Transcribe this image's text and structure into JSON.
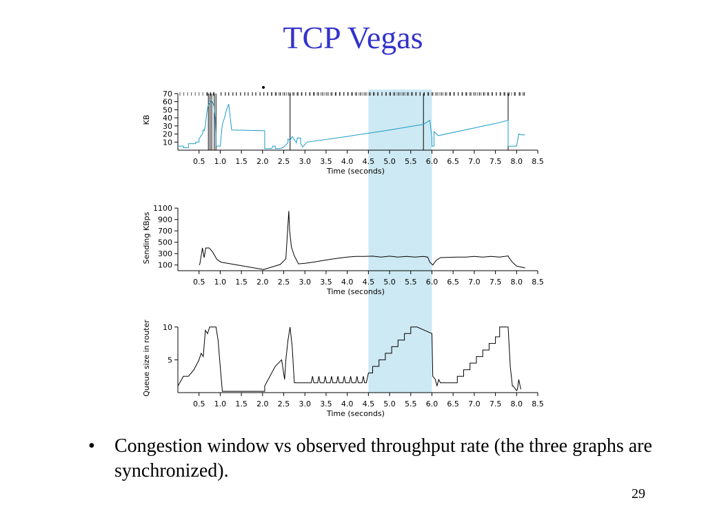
{
  "slide": {
    "title": "TCP Vegas",
    "bullet_symbol": "•",
    "bullet_text": "Congestion window vs observed throughput rate (the three graphs are synchronized).",
    "page_number": "29"
  },
  "colors": {
    "title": "#3333cc",
    "highlight": "#cde9f3",
    "cwnd_line": "#1a9bc8",
    "trace": "#000000"
  },
  "chart_data": [
    {
      "type": "line",
      "xlabel": "Time (seconds)",
      "ylabel": "KB",
      "xlim": [
        0.0,
        8.5
      ],
      "ylim": [
        0,
        75
      ],
      "x_ticks": [
        "0.5",
        "1.0",
        "1.5",
        "2.0",
        "2.5",
        "3.0",
        "3.5",
        "4.0",
        "4.5",
        "5.0",
        "5.5",
        "6.0",
        "6.5",
        "7.0",
        "7.5",
        "8.0",
        "8.5"
      ],
      "y_ticks": [
        10,
        20,
        30,
        40,
        50,
        60,
        70
      ],
      "highlight_x": [
        4.5,
        6.0
      ],
      "events_marker_y": 70,
      "events": [
        0.7,
        0.77,
        0.84,
        1.02,
        1.12,
        1.2,
        1.3,
        1.38,
        1.48,
        1.58,
        1.66,
        1.76,
        1.84,
        1.94,
        2.03,
        2.12,
        2.22,
        2.32,
        2.42,
        2.52,
        2.62,
        2.72,
        2.82,
        2.92,
        3.02,
        3.12,
        3.22,
        3.32,
        3.42,
        3.52,
        3.62,
        3.72,
        3.82,
        3.92,
        4.02,
        4.12,
        4.22,
        4.32,
        4.42,
        4.52,
        4.62,
        4.72,
        4.82,
        4.92,
        5.02,
        5.12,
        5.22,
        5.32,
        5.42,
        5.52,
        5.62,
        5.72,
        5.82,
        5.92,
        6.02,
        6.12,
        6.22,
        6.32,
        6.42,
        6.52,
        6.62,
        6.72,
        6.82,
        6.92,
        7.02,
        7.12,
        7.22,
        7.32,
        7.42,
        7.52,
        7.62,
        7.72,
        7.82,
        7.95,
        8.08,
        8.18
      ],
      "tick_gap": [
        0.9,
        2.05
      ],
      "dot_x": 2.02,
      "vlines": [
        0.72,
        0.76,
        0.8,
        0.86,
        0.9,
        2.65,
        5.8,
        7.8
      ],
      "series": [
        {
          "color": "#1a9bc8",
          "x": [
            0.0,
            0.13,
            0.13,
            0.25,
            0.25,
            0.42,
            0.42,
            0.5,
            0.5,
            0.55,
            0.58,
            0.6,
            0.62,
            0.65,
            0.67,
            0.7,
            0.72,
            0.78,
            0.8,
            0.85,
            0.88,
            0.9,
            0.9,
            0.92,
            0.95,
            1.0,
            1.05,
            1.1,
            1.15,
            1.2,
            1.27,
            2.05,
            2.05,
            2.22,
            2.24,
            2.3,
            2.3,
            2.42,
            2.5,
            2.6,
            2.6,
            2.65,
            2.7,
            2.8,
            2.82,
            2.9,
            2.9,
            2.95,
            3.05,
            4.0,
            5.0,
            5.8,
            5.95,
            6.0,
            6.0,
            6.05,
            6.05,
            6.15,
            7.5,
            7.8,
            7.8,
            7.95,
            8.0,
            8.05,
            8.1,
            8.2
          ],
          "y": [
            5,
            5,
            3,
            3,
            8,
            8,
            10,
            10,
            14,
            18,
            20,
            25,
            24,
            30,
            40,
            52,
            56,
            60,
            62,
            55,
            40,
            15,
            5,
            5,
            5,
            5,
            32,
            40,
            50,
            57,
            25,
            24,
            2,
            2,
            5,
            5,
            2,
            2,
            4,
            9,
            14,
            12,
            17,
            9,
            15,
            15,
            8,
            4,
            10,
            17,
            25,
            32,
            37,
            15,
            5,
            5,
            23,
            18,
            33,
            37,
            5,
            5,
            5,
            20,
            19,
            19
          ]
        }
      ]
    },
    {
      "type": "line",
      "xlabel": "Time (seconds)",
      "ylabel": "Sending KBps",
      "xlim": [
        0.0,
        8.5
      ],
      "ylim": [
        0,
        1150
      ],
      "x_ticks": [
        "0.5",
        "1.0",
        "1.5",
        "2.0",
        "2.5",
        "3.0",
        "3.5",
        "4.0",
        "4.5",
        "5.0",
        "5.5",
        "6.0",
        "6.5",
        "7.0",
        "7.5",
        "8.0",
        "8.5"
      ],
      "y_ticks": [
        100,
        300,
        500,
        700,
        900,
        1100
      ],
      "highlight_x": [
        4.5,
        6.0
      ],
      "series": [
        {
          "color": "#000000",
          "x": [
            0.5,
            0.52,
            0.58,
            0.62,
            0.66,
            0.7,
            0.74,
            0.82,
            0.92,
            1.02,
            2.02,
            2.42,
            2.55,
            2.62,
            2.64,
            2.68,
            2.75,
            2.85,
            3.0,
            3.2,
            3.4,
            3.6,
            3.8,
            4.0,
            4.2,
            4.4,
            4.6,
            4.8,
            5.0,
            5.2,
            5.4,
            5.6,
            5.8,
            5.9,
            5.95,
            6.02,
            6.1,
            6.2,
            6.4,
            6.6,
            6.8,
            7.0,
            7.2,
            7.4,
            7.6,
            7.8,
            7.82,
            7.9,
            8.0,
            8.2
          ],
          "y": [
            100,
            120,
            400,
            230,
            400,
            400,
            400,
            330,
            200,
            150,
            20,
            110,
            210,
            1050,
            700,
            420,
            260,
            120,
            130,
            150,
            175,
            200,
            220,
            240,
            250,
            250,
            255,
            240,
            255,
            240,
            250,
            240,
            250,
            240,
            150,
            100,
            180,
            230,
            235,
            240,
            240,
            250,
            240,
            250,
            240,
            260,
            230,
            150,
            80,
            50
          ]
        }
      ]
    },
    {
      "type": "line",
      "xlabel": "Time (seconds)",
      "ylabel": "Queue size in router",
      "xlim": [
        0.0,
        8.5
      ],
      "ylim": [
        0,
        10.5
      ],
      "x_ticks": [
        "0.5",
        "1.0",
        "1.5",
        "2.0",
        "2.5",
        "3.0",
        "3.5",
        "4.0",
        "4.5",
        "5.0",
        "5.5",
        "6.0",
        "6.5",
        "7.0",
        "7.5",
        "8.0",
        "8.5"
      ],
      "y_ticks": [
        5,
        10
      ],
      "highlight_x": [
        4.5,
        6.0
      ],
      "series": [
        {
          "color": "#000000",
          "x": [
            0.0,
            0.13,
            0.25,
            0.38,
            0.5,
            0.55,
            0.6,
            0.65,
            0.7,
            0.75,
            0.8,
            0.9,
            0.95,
            1.0,
            1.05,
            2.05,
            2.05,
            2.3,
            2.45,
            2.52,
            2.55,
            2.6,
            2.65,
            2.7,
            2.75,
            3.0,
            3.15,
            3.18,
            3.21,
            3.3,
            3.33,
            3.36,
            3.45,
            3.48,
            3.51,
            3.6,
            3.63,
            3.66,
            3.75,
            3.78,
            3.81,
            3.9,
            3.93,
            3.96,
            4.05,
            4.08,
            4.11,
            4.2,
            4.23,
            4.26,
            4.35,
            4.38,
            4.41,
            4.45,
            4.5,
            4.6,
            4.6,
            4.75,
            4.75,
            4.9,
            4.9,
            5.05,
            5.05,
            5.2,
            5.2,
            5.35,
            5.35,
            5.5,
            5.5,
            5.65,
            5.65,
            6.0,
            6.02,
            6.08,
            6.12,
            6.16,
            6.2,
            6.3,
            6.6,
            6.6,
            6.75,
            6.75,
            6.9,
            6.9,
            7.05,
            7.05,
            7.2,
            7.2,
            7.35,
            7.35,
            7.5,
            7.5,
            7.6,
            7.6,
            7.8,
            7.85,
            7.9,
            7.92,
            8.0,
            8.02,
            8.05,
            8.1,
            8.1
          ],
          "y": [
            1,
            2.5,
            2.5,
            3.5,
            5,
            6,
            5.5,
            9.5,
            9,
            10,
            10,
            10,
            8,
            4,
            0.2,
            0.2,
            1,
            4,
            5,
            2,
            5,
            8,
            10,
            7,
            1.5,
            1.5,
            1.5,
            2.5,
            1.5,
            1.5,
            2.5,
            1.5,
            1.5,
            2.5,
            1.5,
            1.5,
            2.5,
            1.5,
            1.5,
            2.5,
            1.5,
            1.5,
            2.5,
            1.5,
            1.5,
            2.5,
            1.5,
            1.5,
            2.5,
            1.5,
            1.5,
            2.5,
            1.5,
            1.5,
            3,
            3,
            4,
            4,
            5,
            5,
            6,
            6,
            7,
            7,
            8,
            8,
            9,
            9,
            10,
            10,
            10,
            9,
            2.5,
            2,
            1,
            2,
            1.5,
            1.5,
            1.5,
            2.5,
            2.5,
            3.5,
            3.5,
            4.5,
            4.5,
            5.5,
            5.5,
            6.5,
            6.5,
            7.5,
            7.5,
            8.5,
            8.5,
            10,
            10,
            4,
            1,
            1,
            0.3,
            0.5,
            2,
            0.5,
            0.5
          ]
        }
      ]
    }
  ]
}
